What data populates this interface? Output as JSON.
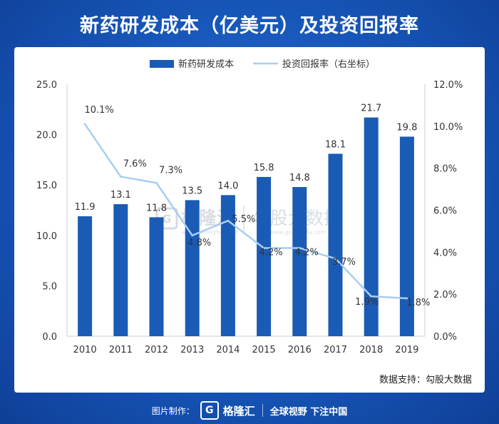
{
  "title": "新药研发成本（亿美元）及投资回报率",
  "source": "数据支持：勾股大数据",
  "watermark": {
    "brand": "格隆汇",
    "brand_url": "www.gelonghui.com",
    "partner": "勾股大数据",
    "partner_url": "www.gogudata.com"
  },
  "footer": {
    "made_by": "图片制作：",
    "brand": "格隆汇",
    "slogan": "全球视野 下注中国"
  },
  "colors": {
    "bar": "#1a5bb5",
    "line": "#a9cdf2",
    "header_bg": "#1656b8"
  },
  "chart_data": {
    "type": "bar",
    "categories": [
      "2010",
      "2011",
      "2012",
      "2013",
      "2014",
      "2015",
      "2016",
      "2017",
      "2018",
      "2019"
    ],
    "series": [
      {
        "name": "新药研发成本",
        "type": "bar",
        "axis": "left",
        "values": [
          11.9,
          13.1,
          11.8,
          13.5,
          14.0,
          15.8,
          14.8,
          18.1,
          21.7,
          19.8
        ],
        "labels": [
          "11.9",
          "13.1",
          "11.8",
          "13.5",
          "14.0",
          "15.8",
          "14.8",
          "18.1",
          "21.7",
          "19.8"
        ]
      },
      {
        "name": "投资回报率（右坐标）",
        "type": "line",
        "axis": "right",
        "values": [
          10.1,
          7.6,
          7.3,
          4.8,
          5.5,
          4.2,
          4.2,
          3.7,
          1.9,
          1.8
        ],
        "labels": [
          "10.1%",
          "7.6%",
          "7.3%",
          "4.8%",
          "5.5%",
          "4.2%",
          "4.2%",
          "3.7%",
          "1.9%",
          "1.8%"
        ]
      }
    ],
    "y_left": {
      "ylim": [
        0,
        25
      ],
      "ticks": [
        "0.0",
        "5.0",
        "10.0",
        "15.0",
        "20.0",
        "25.0"
      ]
    },
    "y_right": {
      "ylim": [
        0,
        12
      ],
      "ticks": [
        "0.0%",
        "2.0%",
        "4.0%",
        "6.0%",
        "8.0%",
        "10.0%",
        "12.0%"
      ]
    },
    "grid": false,
    "legend": "top-center"
  }
}
